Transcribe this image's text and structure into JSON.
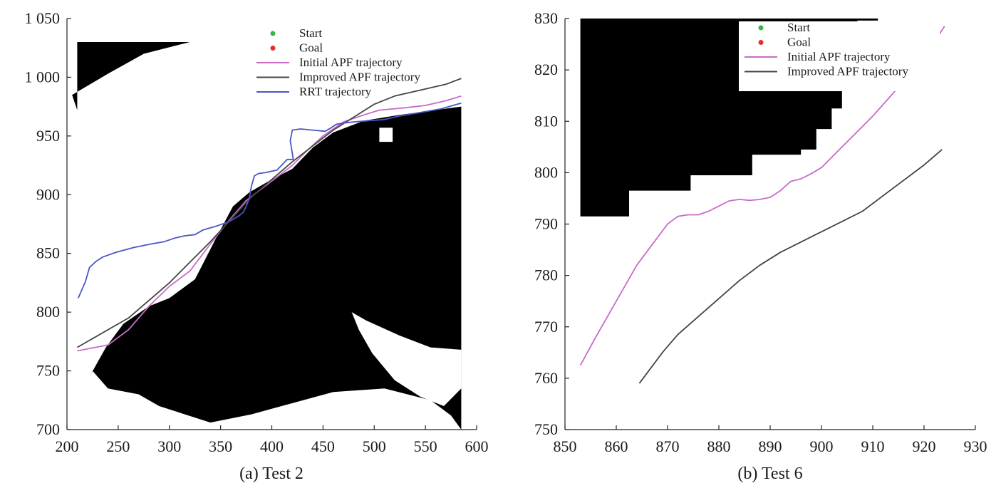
{
  "chart_data": [
    {
      "type": "line",
      "caption": "(a) Test 2",
      "xlim": [
        200,
        600
      ],
      "ylim": [
        700,
        1050
      ],
      "xticks": [
        "200",
        "250",
        "300",
        "350",
        "400",
        "450",
        "500",
        "550",
        "600"
      ],
      "yticks": [
        "700",
        "750",
        "800",
        "850",
        "900",
        "950",
        "1 000",
        "1 050"
      ],
      "legend": {
        "placement": "top-right",
        "entries": [
          {
            "label": "Start",
            "color": "#3cb34a",
            "marker": "dot"
          },
          {
            "label": "Goal",
            "color": "#e0302f",
            "marker": "dot"
          },
          {
            "label": "Initial APF trajectory",
            "color": "#c76bc9",
            "marker": "line"
          },
          {
            "label": "Improved APF trajectory",
            "color": "#444444",
            "marker": "line"
          },
          {
            "label": "RRT trajectory",
            "color": "#4a55c8",
            "marker": "line"
          }
        ]
      },
      "obstacles": [
        {
          "name": "top-left-wedge",
          "color": "#000000",
          "points": [
            [
              210,
              1030
            ],
            [
              320,
              1030
            ],
            [
              275,
              1020
            ],
            [
              240,
              1003
            ],
            [
              205,
              985
            ],
            [
              210,
              972
            ]
          ]
        },
        {
          "name": "main-obstacle",
          "color": "#000000",
          "points": [
            [
              222,
              745
            ],
            [
              238,
              770
            ],
            [
              255,
              790
            ],
            [
              280,
              805
            ],
            [
              300,
              812
            ],
            [
              325,
              828
            ],
            [
              345,
              862
            ],
            [
              362,
              890
            ],
            [
              378,
              902
            ],
            [
              398,
              912
            ],
            [
              420,
              922
            ],
            [
              440,
              940
            ],
            [
              460,
              953
            ],
            [
              490,
              963
            ],
            [
              525,
              968
            ],
            [
              585,
              975
            ],
            [
              585,
              700
            ],
            [
              575,
              712
            ],
            [
              555,
              725
            ],
            [
              510,
              735
            ],
            [
              460,
              732
            ],
            [
              380,
              713
            ],
            [
              340,
              706
            ],
            [
              290,
              720
            ],
            [
              270,
              730
            ],
            [
              240,
              735
            ],
            [
              225,
              750
            ]
          ]
        },
        {
          "name": "island-1",
          "color": "#ffffff",
          "points": [
            [
              478,
              800
            ],
            [
              492,
              793
            ],
            [
              525,
              780
            ],
            [
              555,
              770
            ],
            [
              585,
              768
            ],
            [
              585,
              735
            ],
            [
              568,
              720
            ],
            [
              545,
              728
            ],
            [
              520,
              742
            ],
            [
              498,
              765
            ],
            [
              485,
              785
            ]
          ]
        },
        {
          "name": "island-2",
          "color": "#ffffff",
          "points": [
            [
              505,
              957
            ],
            [
              518,
              957
            ],
            [
              518,
              945
            ],
            [
              505,
              945
            ]
          ]
        }
      ],
      "series": [
        {
          "name": "Initial APF trajectory",
          "color": "#c76bc9",
          "x": [
            210,
            240,
            260,
            280,
            300,
            320,
            340,
            360,
            375,
            390,
            405,
            420,
            435,
            450,
            470,
            490,
            505,
            530,
            550,
            570,
            585
          ],
          "y": [
            767,
            772,
            785,
            805,
            822,
            835,
            858,
            880,
            895,
            905,
            915,
            925,
            938,
            950,
            962,
            968,
            972,
            974,
            976,
            980,
            984
          ]
        },
        {
          "name": "Improved APF trajectory",
          "color": "#444444",
          "x": [
            210,
            260,
            300,
            340,
            380,
            420,
            460,
            500,
            520,
            550,
            570,
            585
          ],
          "y": [
            770,
            795,
            825,
            860,
            898,
            928,
            955,
            977,
            984,
            990,
            994,
            999
          ]
        },
        {
          "name": "RRT trajectory",
          "color": "#4a55c8",
          "x": [
            211,
            218,
            222,
            228,
            235,
            248,
            265,
            282,
            295,
            305,
            315,
            325,
            333,
            345,
            355,
            362,
            368,
            372,
            375,
            378,
            380,
            383,
            387,
            395,
            405,
            415,
            421,
            418,
            420,
            428,
            440,
            452,
            458,
            463,
            470,
            480,
            495,
            510,
            525,
            545,
            565,
            585
          ],
          "y": [
            812,
            826,
            838,
            843,
            847,
            851,
            855,
            858,
            860,
            863,
            865,
            866,
            870,
            873,
            876,
            879,
            882,
            885,
            890,
            897,
            907,
            916,
            918,
            919,
            921,
            930,
            930,
            946,
            955,
            956,
            955,
            954,
            957,
            960,
            961,
            962,
            963,
            964,
            967,
            970,
            973,
            978
          ]
        }
      ]
    },
    {
      "type": "line",
      "caption": "(b) Test 6",
      "xlim": [
        850,
        930
      ],
      "ylim": [
        750,
        830
      ],
      "xticks": [
        "850",
        "860",
        "870",
        "880",
        "890",
        "900",
        "910",
        "920",
        "930"
      ],
      "yticks": [
        "750",
        "760",
        "770",
        "780",
        "790",
        "800",
        "810",
        "820",
        "830"
      ],
      "legend": {
        "placement": "top-right",
        "entries": [
          {
            "label": "Start",
            "color": "#3cb34a",
            "marker": "dot"
          },
          {
            "label": "Goal",
            "color": "#e0302f",
            "marker": "dot"
          },
          {
            "label": "Initial APF trajectory",
            "color": "#c76bc9",
            "marker": "line"
          },
          {
            "label": "Improved APF trajectory",
            "color": "#444444",
            "marker": "line"
          }
        ]
      },
      "obstacles": [
        {
          "name": "staircase-obstacle",
          "color": "#000000",
          "points": [
            [
              853,
              830
            ],
            [
              911,
              830
            ],
            [
              911,
              829.6
            ],
            [
              907,
              829.6
            ],
            [
              907,
              816
            ],
            [
              904,
              816
            ],
            [
              904,
              812.5
            ],
            [
              902,
              812.5
            ],
            [
              902,
              808.5
            ],
            [
              899,
              808.5
            ],
            [
              899,
              804.5
            ],
            [
              896,
              804.5
            ],
            [
              896,
              803.5
            ],
            [
              886.5,
              803.5
            ],
            [
              886.5,
              799.5
            ],
            [
              874.5,
              799.5
            ],
            [
              874.5,
              796.5
            ],
            [
              862.5,
              796.5
            ],
            [
              862.5,
              791.5
            ],
            [
              853,
              791.5
            ]
          ]
        }
      ],
      "series": [
        {
          "name": "Initial APF trajectory",
          "color": "#c76bc9",
          "x": [
            853,
            856,
            860,
            864,
            867,
            870,
            872,
            874,
            876,
            878,
            880,
            882,
            884,
            886,
            888,
            890,
            892,
            894,
            896,
            898,
            900,
            903,
            906,
            910,
            914,
            918,
            922,
            924
          ],
          "y": [
            762.5,
            768,
            775,
            782,
            786,
            790,
            791.5,
            791.8,
            791.8,
            792.5,
            793.5,
            794.5,
            794.8,
            794.6,
            794.8,
            795.2,
            796.5,
            798.3,
            798.8,
            799.8,
            801,
            804,
            807,
            811,
            815.5,
            820,
            825.5,
            828.5
          ]
        },
        {
          "name": "Improved APF trajectory",
          "color": "#444444",
          "x": [
            864.5,
            866,
            869,
            872,
            876,
            880,
            884,
            888,
            892,
            896,
            900,
            904,
            908,
            912,
            916,
            920,
            923.5
          ],
          "y": [
            759,
            761,
            765,
            768.5,
            772,
            775.5,
            779,
            782,
            784.5,
            786.5,
            788.5,
            790.5,
            792.5,
            795.5,
            798.5,
            801.5,
            804.5
          ]
        }
      ]
    }
  ]
}
